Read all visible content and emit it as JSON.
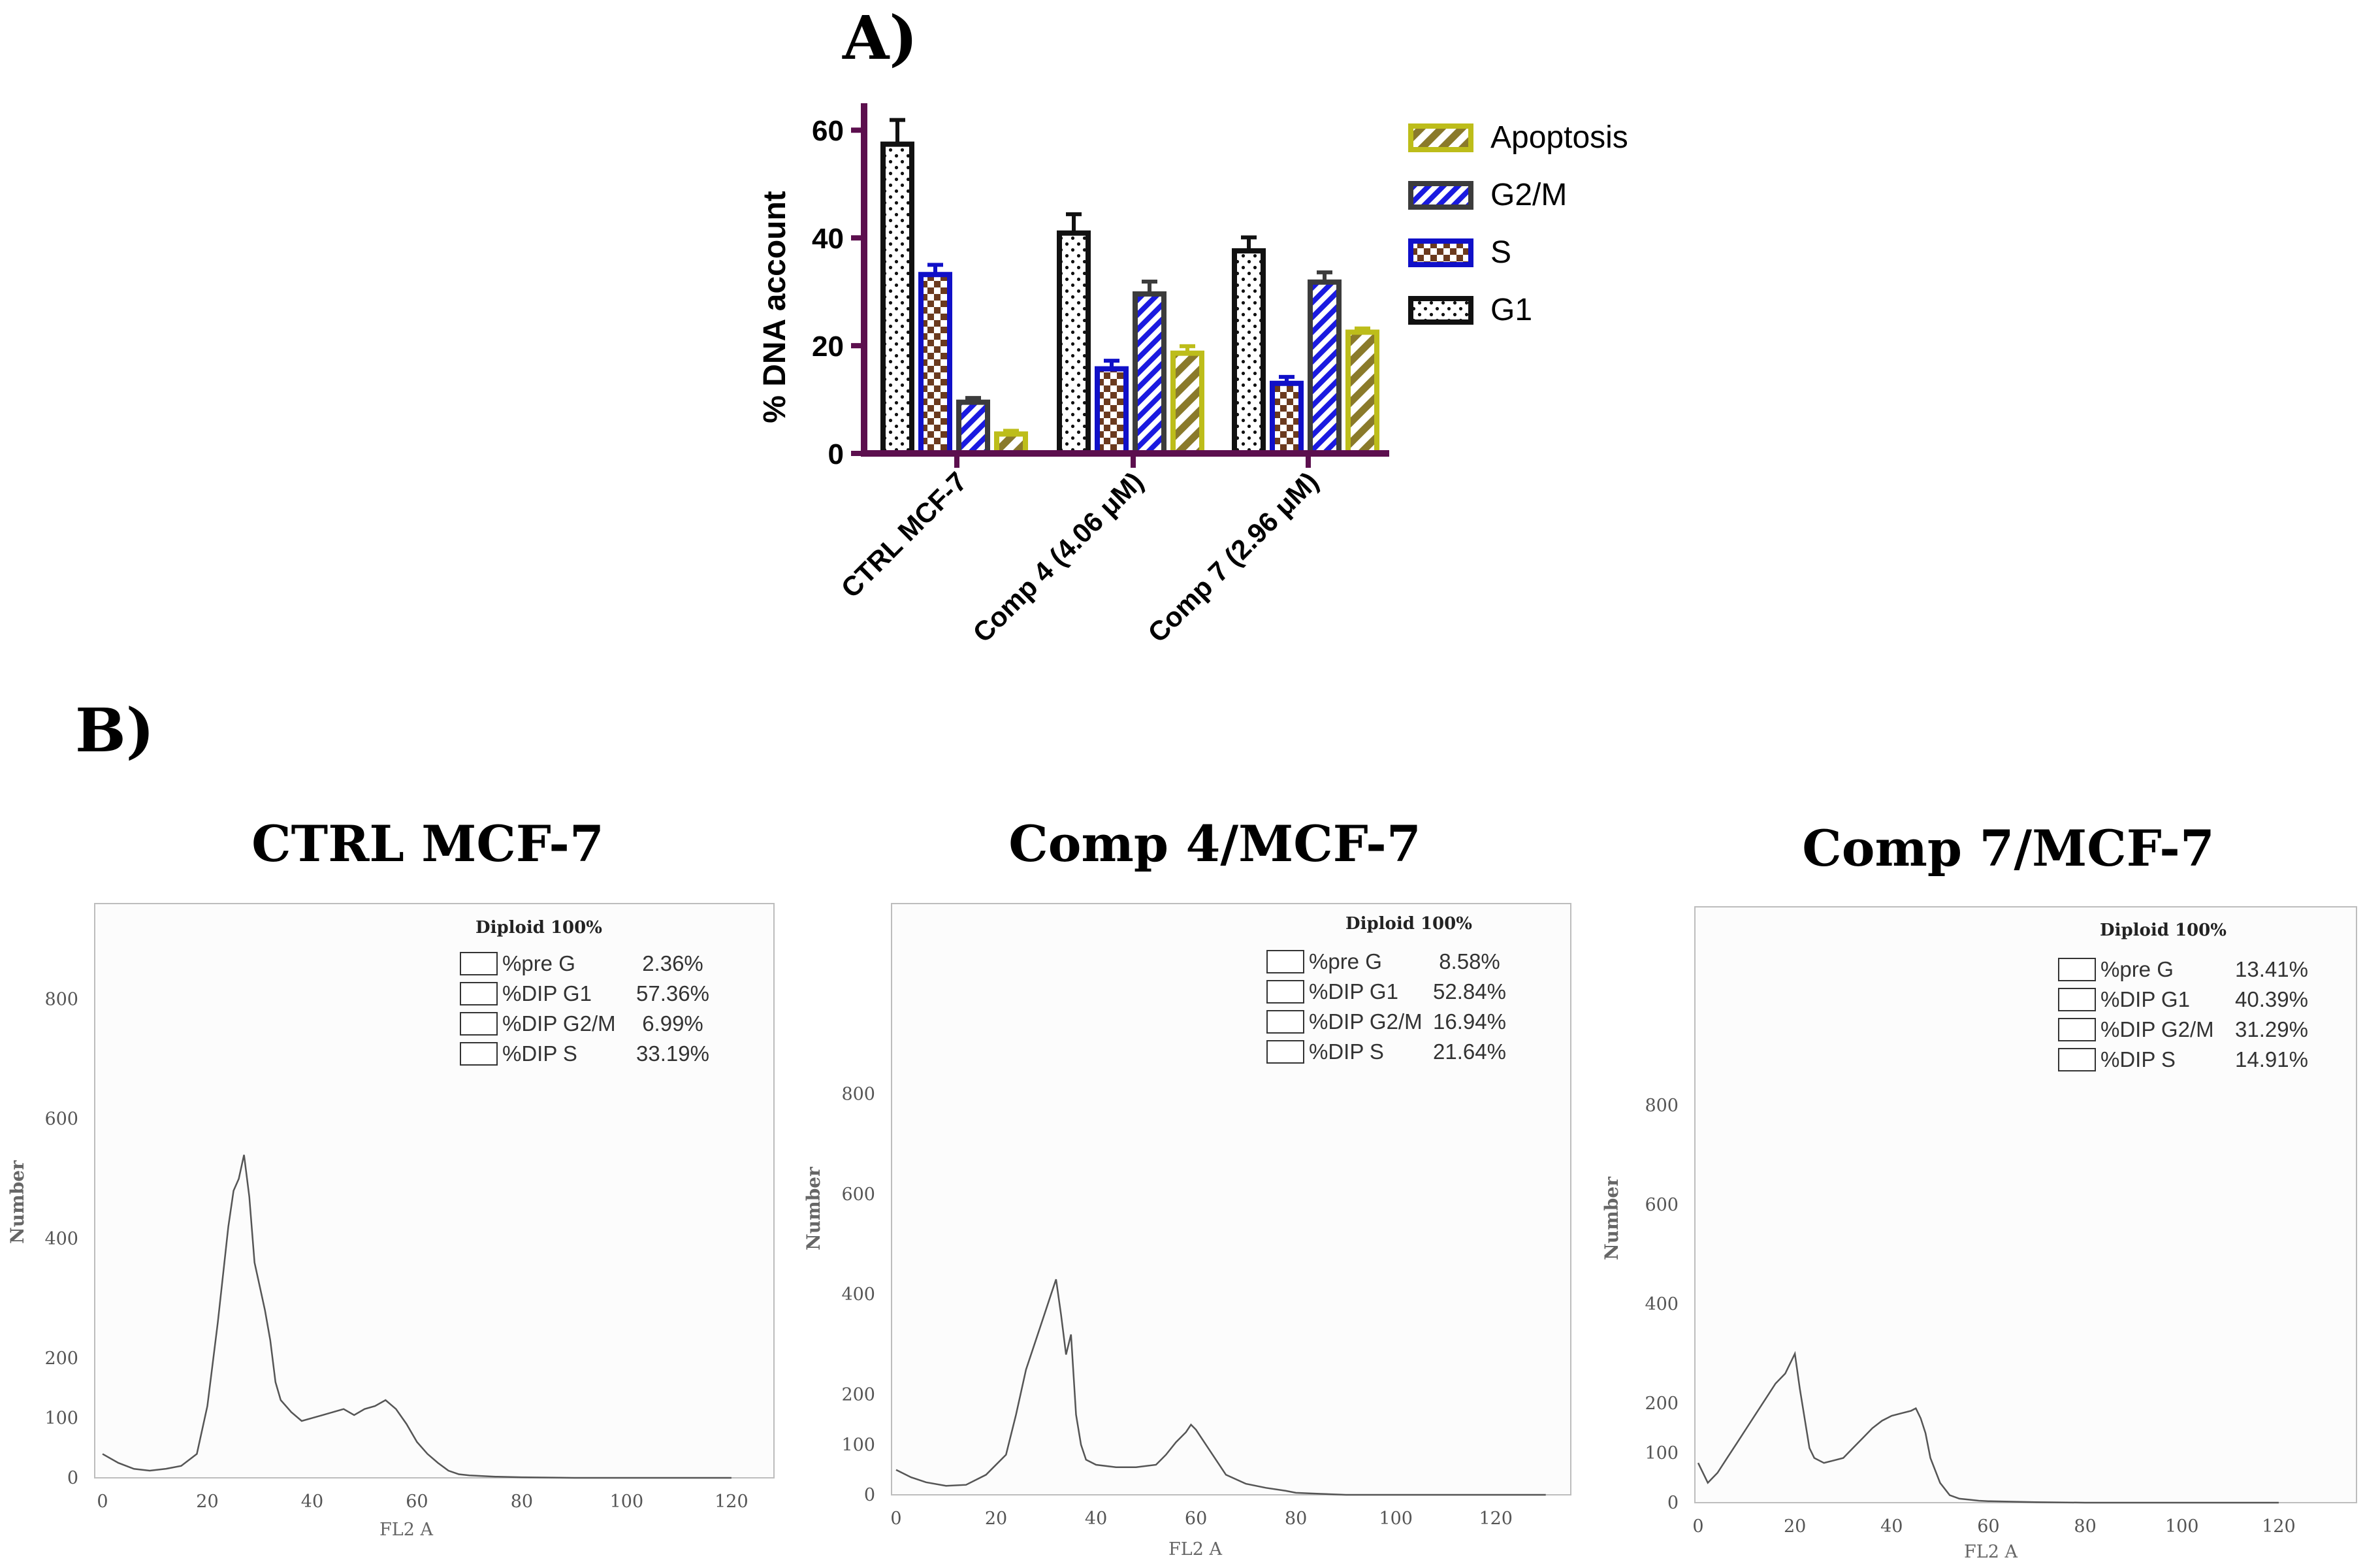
{
  "panel_a": {
    "label": "A)",
    "chart_data": {
      "type": "bar",
      "ylabel": "% DNA account",
      "ylim": [
        0,
        65
      ],
      "yticks": [
        0,
        20,
        40,
        60
      ],
      "categories": [
        "CTRL MCF-7",
        "Comp 4 (4.06 μM)",
        "Comp 7 (2.96 μM)"
      ],
      "series": [
        {
          "name": "G1",
          "values": [
            57.4,
            40.9,
            37.6
          ],
          "errors": [
            4.5,
            3.5,
            2.5
          ],
          "color": "#111111",
          "pattern": "dots"
        },
        {
          "name": "S",
          "values": [
            33.2,
            15.7,
            13.0
          ],
          "errors": [
            1.8,
            1.5,
            1.2
          ],
          "color": "#1010c8",
          "pattern": "checker"
        },
        {
          "name": "G2/M",
          "values": [
            9.5,
            29.6,
            31.8
          ],
          "errors": [
            0.8,
            2.3,
            1.8
          ],
          "color": "#3c3c3c",
          "pattern": "stripes"
        },
        {
          "name": "Apoptosis",
          "values": [
            3.6,
            18.6,
            22.5
          ],
          "errors": [
            0.6,
            1.3,
            0.7
          ],
          "color": "#bdbd1a",
          "pattern": "hatch"
        }
      ],
      "legend": [
        "Apoptosis",
        "G2/M",
        "S",
        "G1"
      ],
      "legend_position": "right"
    }
  },
  "panel_b": {
    "label": "B)",
    "histograms": [
      {
        "title": "CTRL MCF-7",
        "legend_title": "Diploid 100%",
        "stats": [
          {
            "name": "%pre G",
            "value": "2.36%"
          },
          {
            "name": "%DIP G1",
            "value": "57.36%"
          },
          {
            "name": "%DIP G2/M",
            "value": "6.99%"
          },
          {
            "name": "%DIP S",
            "value": "33.19%"
          }
        ],
        "chart_data": {
          "type": "line",
          "xlabel": "FL2 A",
          "ylabel": "Number",
          "xlim": [
            0,
            125
          ],
          "ylim": [
            0,
            960
          ],
          "xticks": [
            0,
            20,
            40,
            60,
            80,
            100,
            120
          ],
          "yticks": [
            0,
            100,
            200,
            400,
            600,
            800
          ],
          "x": [
            0,
            3,
            6,
            9,
            12,
            15,
            18,
            20,
            22,
            24,
            25,
            26,
            27,
            28,
            29,
            30,
            31,
            32,
            33,
            34,
            36,
            38,
            40,
            42,
            44,
            46,
            48,
            50,
            52,
            54,
            56,
            58,
            60,
            62,
            64,
            66,
            68,
            70,
            75,
            80,
            90,
            100,
            110,
            120
          ],
          "y": [
            40,
            25,
            15,
            12,
            15,
            20,
            40,
            120,
            260,
            420,
            480,
            500,
            540,
            470,
            360,
            320,
            280,
            230,
            160,
            130,
            110,
            95,
            100,
            105,
            110,
            115,
            105,
            115,
            120,
            130,
            115,
            90,
            60,
            40,
            25,
            12,
            6,
            4,
            2,
            1,
            0,
            0,
            0,
            0
          ]
        }
      },
      {
        "title": "Comp 4/MCF-7",
        "legend_title": "Diploid 100%",
        "stats": [
          {
            "name": "%pre G",
            "value": "8.58%"
          },
          {
            "name": "%DIP G1",
            "value": "52.84%"
          },
          {
            "name": "%DIP G2/M",
            "value": "16.94%"
          },
          {
            "name": "%DIP S",
            "value": "21.64%"
          }
        ],
        "chart_data": {
          "type": "line",
          "xlabel": "FL2 A",
          "ylabel": "Number",
          "xlim": [
            0,
            135
          ],
          "ylim": [
            0,
            1180
          ],
          "xticks": [
            0,
            20,
            40,
            60,
            80,
            100,
            120
          ],
          "yticks": [
            0,
            100,
            200,
            400,
            600,
            800
          ],
          "x": [
            0,
            3,
            6,
            10,
            14,
            18,
            22,
            24,
            26,
            28,
            30,
            31,
            32,
            33,
            34,
            35,
            36,
            37,
            38,
            40,
            44,
            48,
            52,
            54,
            56,
            58,
            59,
            60,
            62,
            64,
            66,
            70,
            74,
            78,
            80,
            85,
            90,
            100,
            110,
            120,
            130
          ],
          "y": [
            50,
            35,
            25,
            18,
            20,
            40,
            80,
            160,
            250,
            310,
            370,
            400,
            430,
            360,
            280,
            320,
            160,
            100,
            70,
            60,
            55,
            55,
            60,
            80,
            105,
            125,
            140,
            130,
            100,
            70,
            40,
            22,
            14,
            8,
            4,
            2,
            0,
            0,
            0,
            0,
            0
          ]
        }
      },
      {
        "title": "Comp 7/MCF-7",
        "legend_title": "Diploid 100%",
        "stats": [
          {
            "name": "%pre G",
            "value": "13.41%"
          },
          {
            "name": "%DIP G1",
            "value": "40.39%"
          },
          {
            "name": "%DIP G2/M",
            "value": "31.29%"
          },
          {
            "name": "%DIP S",
            "value": "14.91%"
          }
        ],
        "chart_data": {
          "type": "line",
          "xlabel": "FL2 A",
          "ylabel": "Number",
          "xlim": [
            0,
            135
          ],
          "ylim": [
            0,
            1200
          ],
          "xticks": [
            0,
            20,
            40,
            60,
            80,
            100,
            120
          ],
          "yticks": [
            0,
            100,
            200,
            400,
            600,
            800
          ],
          "x": [
            0,
            2,
            4,
            6,
            8,
            10,
            12,
            14,
            16,
            18,
            19,
            20,
            21,
            22,
            23,
            24,
            26,
            28,
            30,
            32,
            34,
            36,
            38,
            40,
            42,
            44,
            45,
            46,
            47,
            48,
            50,
            52,
            54,
            56,
            58,
            60,
            65,
            70,
            80,
            100,
            120
          ],
          "y": [
            80,
            40,
            60,
            90,
            120,
            150,
            180,
            210,
            240,
            260,
            280,
            300,
            230,
            170,
            110,
            90,
            80,
            85,
            90,
            110,
            130,
            150,
            165,
            175,
            180,
            185,
            190,
            170,
            140,
            90,
            40,
            15,
            8,
            6,
            4,
            3,
            2,
            1,
            0,
            0,
            0
          ]
        }
      }
    ]
  }
}
